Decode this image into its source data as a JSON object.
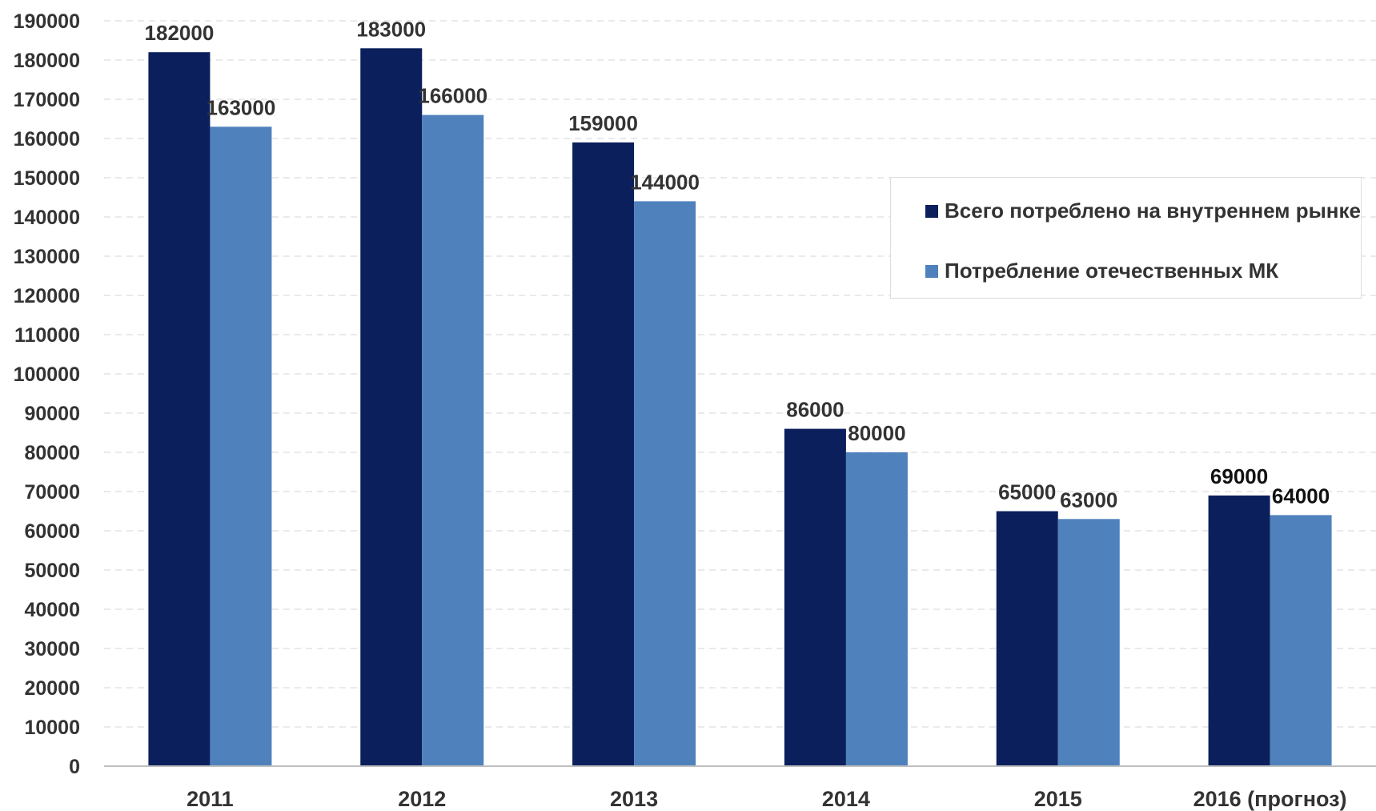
{
  "chart_data": {
    "type": "bar",
    "categories": [
      "2011",
      "2012",
      "2013",
      "2014",
      "2015",
      "2016 (прогноз)"
    ],
    "series": [
      {
        "name": "Всего потреблено на внутреннем рынке",
        "color": "#0b1f5c",
        "values": [
          182000,
          183000,
          159000,
          86000,
          65000,
          69000
        ]
      },
      {
        "name": "Потребление отечественных МК",
        "color": "#4f81bd",
        "values": [
          163000,
          166000,
          144000,
          80000,
          63000,
          64000
        ]
      }
    ],
    "data_labels": [
      [
        "182000",
        "183000",
        "159000",
        "86000",
        "65000",
        "69000"
      ],
      [
        "163000",
        "166000",
        "144000",
        "80000",
        "63000",
        "64000"
      ]
    ],
    "yticks": [
      "0",
      "10000",
      "20000",
      "30000",
      "40000",
      "50000",
      "60000",
      "70000",
      "80000",
      "90000",
      "100000",
      "110000",
      "120000",
      "130000",
      "140000",
      "150000",
      "160000",
      "170000",
      "180000",
      "190000"
    ],
    "ylim": [
      0,
      190000
    ],
    "grid": true,
    "legend_position": "right"
  }
}
